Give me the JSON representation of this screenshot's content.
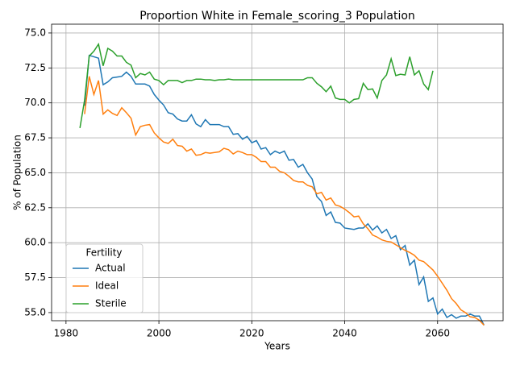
{
  "chart_data": {
    "type": "line",
    "title": "Proportion White in Female_scoring_3 Population",
    "xlabel": "Years",
    "ylabel": "% of Population",
    "x": [
      1983,
      1984,
      1985,
      1986,
      1987,
      1988,
      1989,
      1990,
      1991,
      1992,
      1993,
      1994,
      1995,
      1996,
      1997,
      1998,
      1999,
      2000,
      2001,
      2002,
      2003,
      2004,
      2005,
      2006,
      2007,
      2008,
      2009,
      2010,
      2011,
      2012,
      2013,
      2014,
      2015,
      2016,
      2017,
      2018,
      2019,
      2020,
      2021,
      2022,
      2023,
      2024,
      2025,
      2026,
      2027,
      2028,
      2029,
      2030,
      2031,
      2032,
      2033,
      2034,
      2035,
      2036,
      2037,
      2038,
      2039,
      2040,
      2041,
      2042,
      2043,
      2044,
      2045,
      2046,
      2047,
      2048,
      2049,
      2050,
      2051,
      2052,
      2053,
      2054,
      2055,
      2056,
      2057,
      2058,
      2059,
      2060,
      2061,
      2062,
      2063,
      2064,
      2065,
      2066,
      2067,
      2068,
      2069,
      2070
    ],
    "series": [
      {
        "name": "Actual",
        "color": "#1f77b4",
        "values": [
          null,
          69.8,
          73.4,
          73.3,
          73.2,
          71.3,
          71.5,
          71.8,
          71.85,
          71.9,
          72.2,
          71.9,
          71.35,
          71.35,
          71.35,
          71.2,
          70.6,
          70.2,
          69.85,
          69.3,
          69.2,
          68.85,
          68.7,
          68.7,
          69.15,
          68.5,
          68.3,
          68.8,
          68.45,
          68.45,
          68.45,
          68.3,
          68.3,
          67.75,
          67.8,
          67.4,
          67.6,
          67.15,
          67.3,
          66.7,
          66.8,
          66.3,
          66.55,
          66.4,
          66.55,
          65.9,
          65.95,
          65.4,
          65.6,
          65.0,
          64.55,
          63.3,
          62.95,
          61.95,
          62.2,
          61.45,
          61.4,
          61.05,
          61.0,
          60.95,
          61.05,
          61.05,
          61.35,
          60.9,
          61.2,
          60.7,
          60.95,
          60.3,
          60.5,
          59.5,
          59.8,
          58.4,
          58.75,
          57.0,
          57.55,
          55.8,
          56.05,
          54.9,
          55.25,
          54.65,
          54.85,
          54.6,
          54.75,
          54.75,
          54.9,
          54.75,
          54.75,
          54.1
        ]
      },
      {
        "name": "Ideal",
        "color": "#ff7f0e",
        "values": [
          null,
          69.2,
          71.9,
          70.6,
          71.6,
          69.2,
          69.5,
          69.25,
          69.1,
          69.65,
          69.3,
          68.9,
          67.7,
          68.3,
          68.4,
          68.45,
          67.85,
          67.5,
          67.2,
          67.1,
          67.4,
          66.95,
          66.9,
          66.55,
          66.7,
          66.25,
          66.3,
          66.45,
          66.4,
          66.45,
          66.5,
          66.75,
          66.65,
          66.35,
          66.55,
          66.45,
          66.3,
          66.3,
          66.1,
          65.8,
          65.8,
          65.4,
          65.4,
          65.1,
          65.0,
          64.75,
          64.45,
          64.35,
          64.35,
          64.1,
          64.0,
          63.5,
          63.6,
          63.05,
          63.2,
          62.7,
          62.6,
          62.4,
          62.15,
          61.85,
          61.9,
          61.35,
          61.0,
          60.55,
          60.4,
          60.2,
          60.1,
          60.05,
          59.85,
          59.65,
          59.45,
          59.3,
          59.1,
          58.75,
          58.65,
          58.35,
          58.05,
          57.6,
          57.1,
          56.6,
          56.0,
          55.65,
          55.2,
          55.0,
          54.7,
          54.65,
          54.45,
          54.1
        ]
      },
      {
        "name": "Sterile",
        "color": "#2ca02c",
        "values": [
          68.2,
          70.2,
          73.35,
          73.7,
          74.2,
          72.65,
          73.9,
          73.7,
          73.35,
          73.35,
          72.9,
          72.7,
          71.8,
          72.1,
          72.0,
          72.2,
          71.7,
          71.6,
          71.3,
          71.6,
          71.6,
          71.6,
          71.45,
          71.6,
          71.6,
          71.7,
          71.7,
          71.65,
          71.65,
          71.6,
          71.65,
          71.65,
          71.7,
          71.65,
          71.65,
          71.65,
          71.65,
          71.65,
          71.65,
          71.65,
          71.65,
          71.65,
          71.65,
          71.65,
          71.65,
          71.65,
          71.65,
          71.65,
          71.65,
          71.8,
          71.8,
          71.4,
          71.15,
          70.8,
          71.2,
          70.35,
          70.25,
          70.25,
          70.0,
          70.25,
          70.3,
          71.4,
          70.95,
          71.0,
          70.35,
          71.6,
          72.0,
          73.15,
          71.95,
          72.05,
          72.0,
          73.3,
          72.0,
          72.3,
          71.35,
          70.95,
          72.3,
          null,
          null,
          null,
          null,
          null,
          null,
          null,
          null,
          null,
          null,
          null
        ]
      }
    ],
    "xlim": [
      1976.9,
      2074.1
    ],
    "xticks": [
      1980,
      2000,
      2020,
      2040,
      2060
    ],
    "ylim": [
      54.42,
      75.63
    ],
    "yticks": [
      {
        "value": 55,
        "label": "55.0"
      },
      57.5,
      {
        "value": 60,
        "label": "60.0"
      },
      62.5,
      {
        "value": 65,
        "label": "65.0"
      },
      67.5,
      {
        "value": 70,
        "label": "70.0"
      },
      72.5,
      {
        "value": 75,
        "label": "75.0"
      }
    ],
    "grid": true,
    "legend_title": "Fertility",
    "legend": "lower left"
  }
}
